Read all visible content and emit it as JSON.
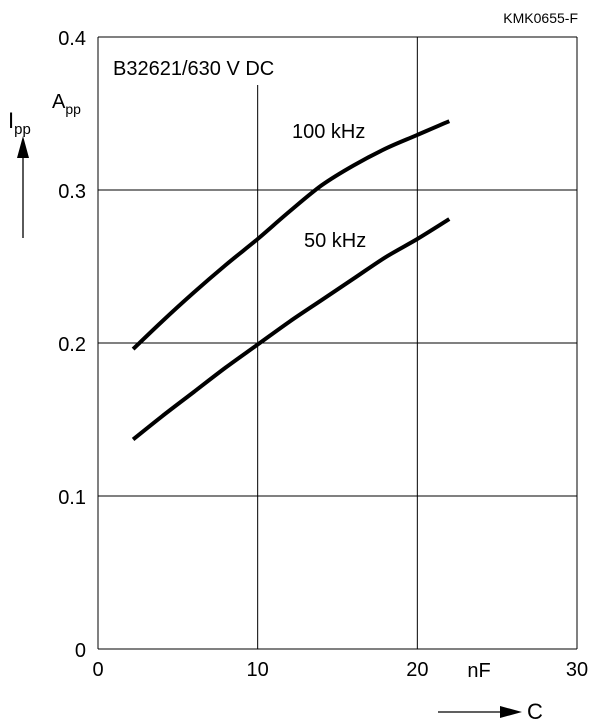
{
  "chart_data": {
    "type": "line",
    "figure_code": "KMK0655-F",
    "title": "B32621/630 V DC",
    "xlabel": "C",
    "x_unit": "nF",
    "ylabel": "I",
    "ylabel_sub": "pp",
    "y_unit": "A",
    "y_unit_sub": "pp",
    "xlim": [
      0,
      30
    ],
    "ylim": [
      0,
      0.4
    ],
    "x_ticks": [
      {
        "value": 0,
        "label": "0"
      },
      {
        "value": 10,
        "label": "10"
      },
      {
        "value": 20,
        "label": "20"
      },
      {
        "value": 30,
        "label": "30"
      }
    ],
    "y_ticks": [
      {
        "value": 0,
        "label": "0"
      },
      {
        "value": 0.1,
        "label": "0.1"
      },
      {
        "value": 0.2,
        "label": "0.2"
      },
      {
        "value": 0.3,
        "label": "0.3"
      },
      {
        "value": 0.4,
        "label": "0.4"
      }
    ],
    "grid": true,
    "series": [
      {
        "name": "100 kHz",
        "color": "#000000",
        "points": [
          [
            2.2,
            0.196
          ],
          [
            4,
            0.214
          ],
          [
            6,
            0.233
          ],
          [
            8,
            0.251
          ],
          [
            10,
            0.268
          ],
          [
            12,
            0.286
          ],
          [
            14,
            0.303
          ],
          [
            16,
            0.316
          ],
          [
            18,
            0.327
          ],
          [
            20,
            0.336
          ],
          [
            22,
            0.345
          ]
        ]
      },
      {
        "name": "50 kHz",
        "color": "#000000",
        "points": [
          [
            2.2,
            0.137
          ],
          [
            4,
            0.152
          ],
          [
            6,
            0.168
          ],
          [
            8,
            0.184
          ],
          [
            10,
            0.199
          ],
          [
            12,
            0.214
          ],
          [
            14,
            0.228
          ],
          [
            16,
            0.242
          ],
          [
            18,
            0.256
          ],
          [
            20,
            0.268
          ],
          [
            22,
            0.281
          ]
        ]
      }
    ]
  }
}
